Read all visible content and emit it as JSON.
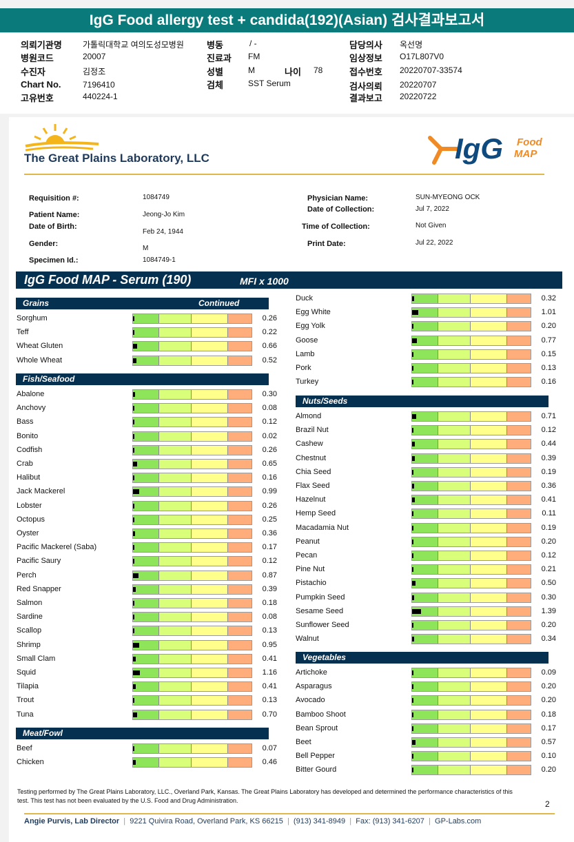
{
  "banner": "IgG Food allergy test + candida(192)(Asian) 검사결과보고서",
  "header": {
    "col1": [
      {
        "label": "의뢰기관명",
        "value": "가톨릭대학교 여의도성모병원"
      },
      {
        "label": "병원코드",
        "value": "20007"
      },
      {
        "label": "수진자",
        "value": "김정조"
      },
      {
        "label": "Chart No.",
        "value": "7196410"
      },
      {
        "label": "고유번호",
        "value": "440224-1"
      }
    ],
    "col2": [
      {
        "label": "병동",
        "value": "/ -"
      },
      {
        "label": "진료과",
        "value": "FM"
      },
      {
        "label": "성별",
        "value": "M"
      },
      {
        "label": "검체",
        "value": "SST Serum"
      }
    ],
    "age_label": "나이",
    "age_value": "78",
    "col3": [
      {
        "label": "담당의사",
        "value": "옥선명"
      },
      {
        "label": "임상정보",
        "value": "O17L807V0"
      },
      {
        "label": "접수번호",
        "value": "20220707-33574"
      },
      {
        "label": "검사의뢰",
        "value": "20220707"
      },
      {
        "label": "결과보고",
        "value": "20220722"
      }
    ]
  },
  "lab": {
    "name": "The Great Plains Laboratory, LLC",
    "igg_logo": "IgG",
    "igg_logo_sub1": "Food",
    "igg_logo_sub2": "MAP"
  },
  "patient": {
    "requisition_label": "Requisition #:",
    "requisition": "1084749",
    "name_label": "Patient Name:",
    "name": "Jeong-Jo Kim",
    "dob_label": "Date of Birth:",
    "dob": "Feb 24, 1944",
    "gender_label": "Gender:",
    "gender": "M",
    "specimen_label": "Specimen Id.:",
    "specimen": "1084749-1",
    "physician_label": "Physician Name:",
    "physician": "SUN-MYEONG OCK",
    "collection_label": "Date of Collection:",
    "collection": "Jul 7, 2022",
    "time_label": "Time of Collection:",
    "time": "Not Given",
    "print_label": "Print Date:",
    "print": "Jul 22, 2022"
  },
  "title": "IgG Food MAP - Serum (190)",
  "units": "MFI x 1000",
  "sections": {
    "grains": {
      "title": "Grains",
      "continued": "Continued",
      "items": [
        {
          "name": "Sorghum",
          "value": "0.26"
        },
        {
          "name": "Teff",
          "value": "0.22"
        },
        {
          "name": "Wheat Gluten",
          "value": "0.66"
        },
        {
          "name": "Whole Wheat",
          "value": "0.52"
        }
      ]
    },
    "fish": {
      "title": "Fish/Seafood",
      "items": [
        {
          "name": "Abalone",
          "value": "0.30"
        },
        {
          "name": "Anchovy",
          "value": "0.08"
        },
        {
          "name": "Bass",
          "value": "0.12"
        },
        {
          "name": "Bonito",
          "value": "0.02"
        },
        {
          "name": "Codfish",
          "value": "0.26"
        },
        {
          "name": "Crab",
          "value": "0.65"
        },
        {
          "name": "Halibut",
          "value": "0.16"
        },
        {
          "name": "Jack Mackerel",
          "value": "0.99"
        },
        {
          "name": "Lobster",
          "value": "0.26"
        },
        {
          "name": "Octopus",
          "value": "0.25"
        },
        {
          "name": "Oyster",
          "value": "0.36"
        },
        {
          "name": "Pacific Mackerel (Saba)",
          "value": "0.17"
        },
        {
          "name": "Pacific Saury",
          "value": "0.12"
        },
        {
          "name": "Perch",
          "value": "0.87"
        },
        {
          "name": "Red Snapper",
          "value": "0.39"
        },
        {
          "name": "Salmon",
          "value": "0.18"
        },
        {
          "name": "Sardine",
          "value": "0.08"
        },
        {
          "name": "Scallop",
          "value": "0.13"
        },
        {
          "name": "Shrimp",
          "value": "0.95"
        },
        {
          "name": "Small Clam",
          "value": "0.41"
        },
        {
          "name": "Squid",
          "value": "1.16"
        },
        {
          "name": "Tilapia",
          "value": "0.41"
        },
        {
          "name": "Trout",
          "value": "0.13"
        },
        {
          "name": "Tuna",
          "value": "0.70"
        }
      ]
    },
    "meat": {
      "title": "Meat/Fowl",
      "items": [
        {
          "name": "Beef",
          "value": "0.07"
        },
        {
          "name": "Chicken",
          "value": "0.46"
        }
      ]
    },
    "meat_cont": {
      "items": [
        {
          "name": "Duck",
          "value": "0.32"
        },
        {
          "name": "Egg White",
          "value": "1.01"
        },
        {
          "name": "Egg Yolk",
          "value": "0.20"
        },
        {
          "name": "Goose",
          "value": "0.77"
        },
        {
          "name": "Lamb",
          "value": "0.15"
        },
        {
          "name": "Pork",
          "value": "0.13"
        },
        {
          "name": "Turkey",
          "value": "0.16"
        }
      ]
    },
    "nuts": {
      "title": "Nuts/Seeds",
      "items": [
        {
          "name": "Almond",
          "value": "0.71"
        },
        {
          "name": "Brazil Nut",
          "value": "0.12"
        },
        {
          "name": "Cashew",
          "value": "0.44"
        },
        {
          "name": "Chestnut",
          "value": "0.39"
        },
        {
          "name": "Chia Seed",
          "value": "0.19"
        },
        {
          "name": "Flax Seed",
          "value": "0.36"
        },
        {
          "name": "Hazelnut",
          "value": "0.41"
        },
        {
          "name": "Hemp Seed",
          "value": "0.11"
        },
        {
          "name": "Macadamia Nut",
          "value": "0.19"
        },
        {
          "name": "Peanut",
          "value": "0.20"
        },
        {
          "name": "Pecan",
          "value": "0.12"
        },
        {
          "name": "Pine Nut",
          "value": "0.21"
        },
        {
          "name": "Pistachio",
          "value": "0.50"
        },
        {
          "name": "Pumpkin Seed",
          "value": "0.30"
        },
        {
          "name": "Sesame Seed",
          "value": "1.39"
        },
        {
          "name": "Sunflower Seed",
          "value": "0.20"
        },
        {
          "name": "Walnut",
          "value": "0.34"
        }
      ]
    },
    "veg": {
      "title": "Vegetables",
      "items": [
        {
          "name": "Artichoke",
          "value": "0.09"
        },
        {
          "name": "Asparagus",
          "value": "0.20"
        },
        {
          "name": "Avocado",
          "value": "0.20"
        },
        {
          "name": "Bamboo Shoot",
          "value": "0.18"
        },
        {
          "name": "Bean Sprout",
          "value": "0.17"
        },
        {
          "name": "Beet",
          "value": "0.57"
        },
        {
          "name": "Bell Pepper",
          "value": "0.10"
        },
        {
          "name": "Bitter Gourd",
          "value": "0.20"
        }
      ]
    }
  },
  "disclaimer": "Testing performed by The Great Plains Laboratory, LLC., Overland Park, Kansas.  The Great Plains Laboratory has developed and determined the performance characteristics of this test.  This test has not been evaluated by the U.S.  Food and Drug Administration.",
  "page_number": "2",
  "footer": {
    "director": "Angie Purvis, Lab Director",
    "address": "9221 Quivira Road, Overland Park, KS 66215",
    "phone": "(913) 341-8949",
    "fax": "Fax: (913) 341-6207",
    "site": "GP-Labs.com"
  }
}
